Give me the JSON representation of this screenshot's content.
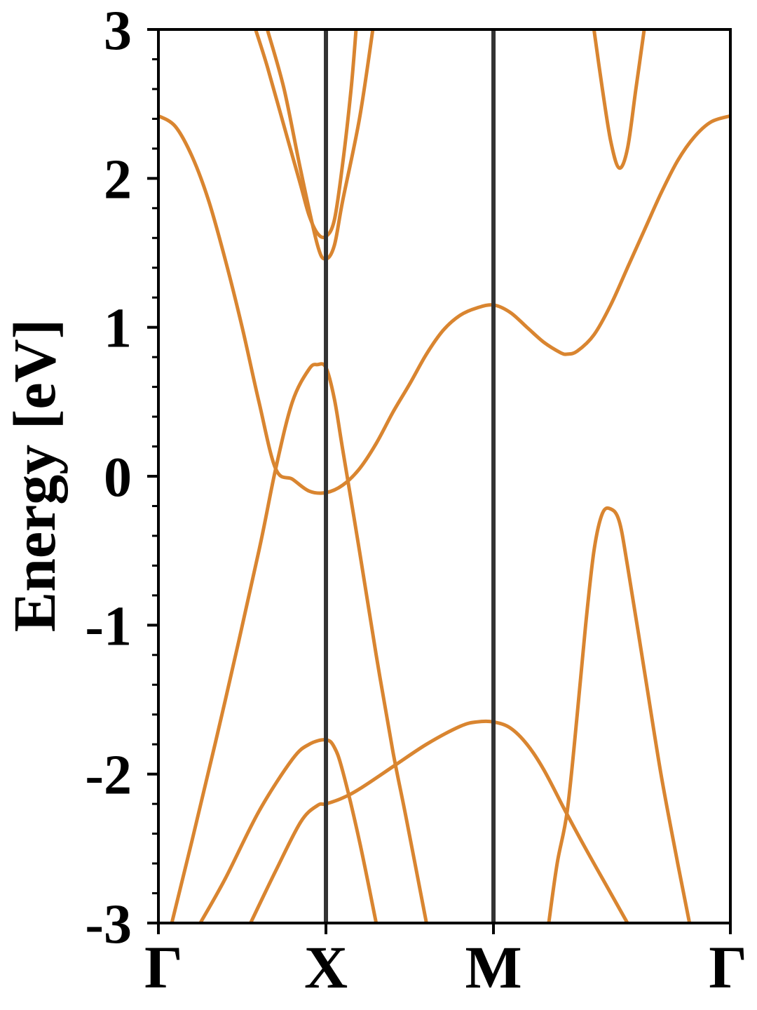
{
  "chart_data": {
    "type": "line",
    "title": "",
    "xlabel": "",
    "ylabel": "Energy [eV]",
    "ylim": [
      -3,
      3
    ],
    "xlim": [
      0,
      3.414
    ],
    "grid": false,
    "legend": "none",
    "line_color": "#D98530",
    "high_symbol_line_color": "#333333",
    "high_symmetry_points": [
      {
        "label": "Γ",
        "x": 0
      },
      {
        "label": "X",
        "x": 1
      },
      {
        "label": "M",
        "x": 2
      },
      {
        "label": "Γ",
        "x": 3.414
      }
    ],
    "yticks": [
      -3,
      -2,
      -1,
      0,
      1,
      2,
      3
    ],
    "ytick_labels": [
      "-3",
      "-2",
      "-1",
      "0",
      "1",
      "2",
      "3"
    ],
    "yminor_step": 0.2,
    "series": [
      {
        "values": [
          [
            0,
            2.42
          ],
          [
            0.1,
            2.35
          ],
          [
            0.2,
            2.15
          ],
          [
            0.3,
            1.85
          ],
          [
            0.4,
            1.45
          ],
          [
            0.5,
            1.0
          ],
          [
            0.6,
            0.5
          ],
          [
            0.7,
            0.05
          ],
          [
            0.8,
            -0.02
          ],
          [
            0.9,
            -0.1
          ],
          [
            1.0,
            -0.11
          ],
          [
            1.1,
            -0.06
          ],
          [
            1.2,
            0.05
          ],
          [
            1.3,
            0.22
          ],
          [
            1.4,
            0.43
          ],
          [
            1.5,
            0.62
          ],
          [
            1.6,
            0.82
          ],
          [
            1.7,
            0.98
          ],
          [
            1.8,
            1.08
          ],
          [
            1.9,
            1.13
          ],
          [
            2.0,
            1.15
          ],
          [
            2.1,
            1.1
          ],
          [
            2.2,
            1.0
          ],
          [
            2.3,
            0.9
          ],
          [
            2.4,
            0.83
          ],
          [
            2.44,
            0.82
          ],
          [
            2.5,
            0.84
          ],
          [
            2.6,
            0.95
          ],
          [
            2.7,
            1.15
          ],
          [
            2.8,
            1.4
          ],
          [
            2.9,
            1.65
          ],
          [
            3.0,
            1.9
          ],
          [
            3.1,
            2.12
          ],
          [
            3.2,
            2.28
          ],
          [
            3.3,
            2.38
          ],
          [
            3.414,
            2.42
          ]
        ]
      },
      {
        "values": [
          [
            0.08,
            -3.0
          ],
          [
            0.2,
            -2.45
          ],
          [
            0.4,
            -1.5
          ],
          [
            0.6,
            -0.5
          ],
          [
            0.7,
            0.05
          ],
          [
            0.8,
            0.5
          ],
          [
            0.9,
            0.72
          ],
          [
            0.95,
            0.75
          ],
          [
            1.0,
            0.73
          ],
          [
            1.05,
            0.52
          ],
          [
            1.1,
            0.18
          ],
          [
            1.2,
            -0.5
          ],
          [
            1.3,
            -1.2
          ],
          [
            1.4,
            -1.85
          ],
          [
            1.48,
            -2.3
          ],
          [
            1.6,
            -3.0
          ]
        ]
      },
      {
        "values": [
          [
            0.25,
            -3.0
          ],
          [
            0.4,
            -2.7
          ],
          [
            0.6,
            -2.25
          ],
          [
            0.8,
            -1.9
          ],
          [
            0.9,
            -1.8
          ],
          [
            1.0,
            -1.77
          ],
          [
            1.05,
            -1.82
          ],
          [
            1.1,
            -1.98
          ],
          [
            1.2,
            -2.45
          ],
          [
            1.3,
            -3.0
          ]
        ]
      },
      {
        "values": [
          [
            0.55,
            -3.0
          ],
          [
            0.7,
            -2.65
          ],
          [
            0.85,
            -2.32
          ],
          [
            0.95,
            -2.21
          ],
          [
            1.0,
            -2.2
          ],
          [
            1.1,
            -2.16
          ],
          [
            1.2,
            -2.1
          ],
          [
            1.4,
            -1.95
          ],
          [
            1.6,
            -1.8
          ],
          [
            1.8,
            -1.68
          ],
          [
            1.9,
            -1.65
          ],
          [
            2.0,
            -1.65
          ],
          [
            2.1,
            -1.69
          ],
          [
            2.2,
            -1.8
          ],
          [
            2.3,
            -1.97
          ],
          [
            2.43,
            -2.25
          ],
          [
            2.55,
            -2.5
          ],
          [
            2.7,
            -2.8
          ],
          [
            2.8,
            -3.0
          ]
        ]
      },
      {
        "values": [
          [
            2.33,
            -3.0
          ],
          [
            2.38,
            -2.6
          ],
          [
            2.44,
            -2.25
          ],
          [
            2.5,
            -1.6
          ],
          [
            2.55,
            -1.0
          ],
          [
            2.6,
            -0.5
          ],
          [
            2.65,
            -0.25
          ],
          [
            2.7,
            -0.22
          ],
          [
            2.75,
            -0.3
          ],
          [
            2.8,
            -0.6
          ],
          [
            2.9,
            -1.3
          ],
          [
            3.0,
            -2.0
          ],
          [
            3.1,
            -2.6
          ],
          [
            3.17,
            -3.0
          ]
        ]
      },
      {
        "values": [
          [
            0.58,
            3.0
          ],
          [
            0.65,
            2.75
          ],
          [
            0.75,
            2.35
          ],
          [
            0.85,
            1.95
          ],
          [
            0.9,
            1.75
          ],
          [
            0.95,
            1.63
          ],
          [
            1.0,
            1.61
          ],
          [
            1.05,
            1.72
          ],
          [
            1.1,
            2.1
          ],
          [
            1.15,
            2.6
          ],
          [
            1.18,
            3.0
          ]
        ]
      },
      {
        "values": [
          [
            0.65,
            3.0
          ],
          [
            0.75,
            2.6
          ],
          [
            0.85,
            2.05
          ],
          [
            0.95,
            1.55
          ],
          [
            1.0,
            1.46
          ],
          [
            1.05,
            1.55
          ],
          [
            1.1,
            1.85
          ],
          [
            1.2,
            2.4
          ],
          [
            1.28,
            3.0
          ]
        ]
      },
      {
        "values": [
          [
            2.6,
            3.0
          ],
          [
            2.65,
            2.6
          ],
          [
            2.7,
            2.25
          ],
          [
            2.75,
            2.07
          ],
          [
            2.8,
            2.2
          ],
          [
            2.85,
            2.6
          ],
          [
            2.9,
            3.0
          ]
        ]
      }
    ]
  }
}
